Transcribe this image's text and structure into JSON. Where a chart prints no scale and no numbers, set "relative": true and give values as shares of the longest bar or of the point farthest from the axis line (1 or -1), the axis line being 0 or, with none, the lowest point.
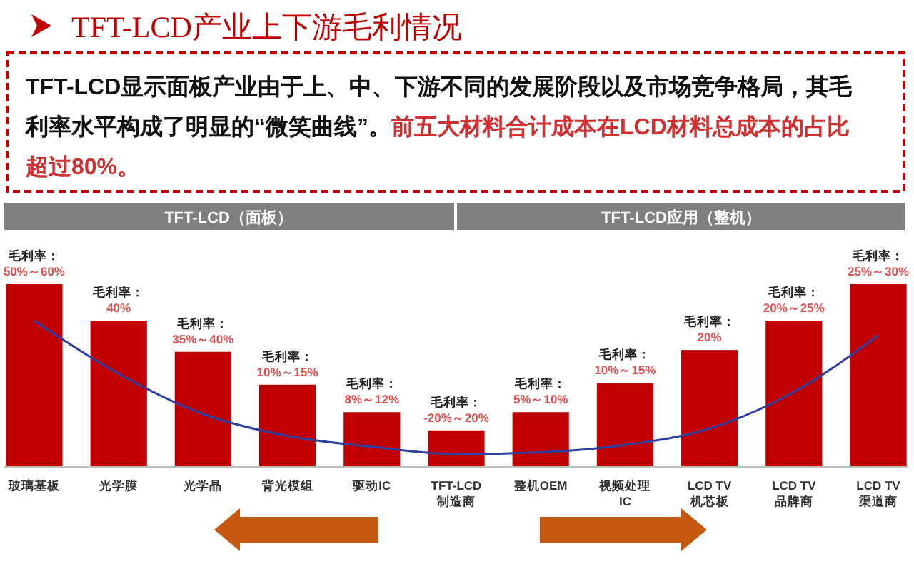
{
  "chart_data": {
    "type": "bar",
    "title": "TFT-LCD产业上下游毛利情况",
    "relative": true,
    "categories": [
      "玻璃基板",
      "光学膜",
      "光学晶",
      "背光模组",
      "驱动IC",
      "TFT-LCD\n制造商",
      "整机OEM",
      "视频处理\nIC",
      "LCD TV\n机芯板",
      "LCD TV\n品牌商",
      "LCD TV\n渠道商"
    ],
    "series": [
      {
        "type": "bar",
        "color": "#c00000",
        "values": [
          1,
          0.8,
          0.63,
          0.45,
          0.3,
          0.2,
          0.3,
          0.46,
          0.64,
          0.8,
          1
        ]
      },
      {
        "type": "line",
        "color": "#2f3f9f",
        "values": [
          0.8,
          0.51,
          0.29,
          0.17,
          0.11,
          0.07,
          0.08,
          0.12,
          0.21,
          0.41,
          0.72
        ]
      }
    ],
    "annotations": [
      "TFT-LCD显示面板产业由于上、中、下游不同的发展阶段以及市场竞争格局，其毛利率水平构成了明显的“微笑曲线”。",
      "前五大材料合计成本在LCD材料总成本的占比超过80%。",
      "TFT-LCD（面板）",
      "TFT-LCD应用（整机）",
      "毛利率：50%～60%",
      "毛利率：40%",
      "毛利率：35%～40%",
      "毛利率：10%～15%",
      "毛利率：8%～12%",
      "毛利率：-20%～20%",
      "毛利率：5%～10%",
      "毛利率：10%～15%",
      "毛利率：20%",
      "毛利率：20%～25%",
      "毛利率：25%～30%"
    ]
  }
}
